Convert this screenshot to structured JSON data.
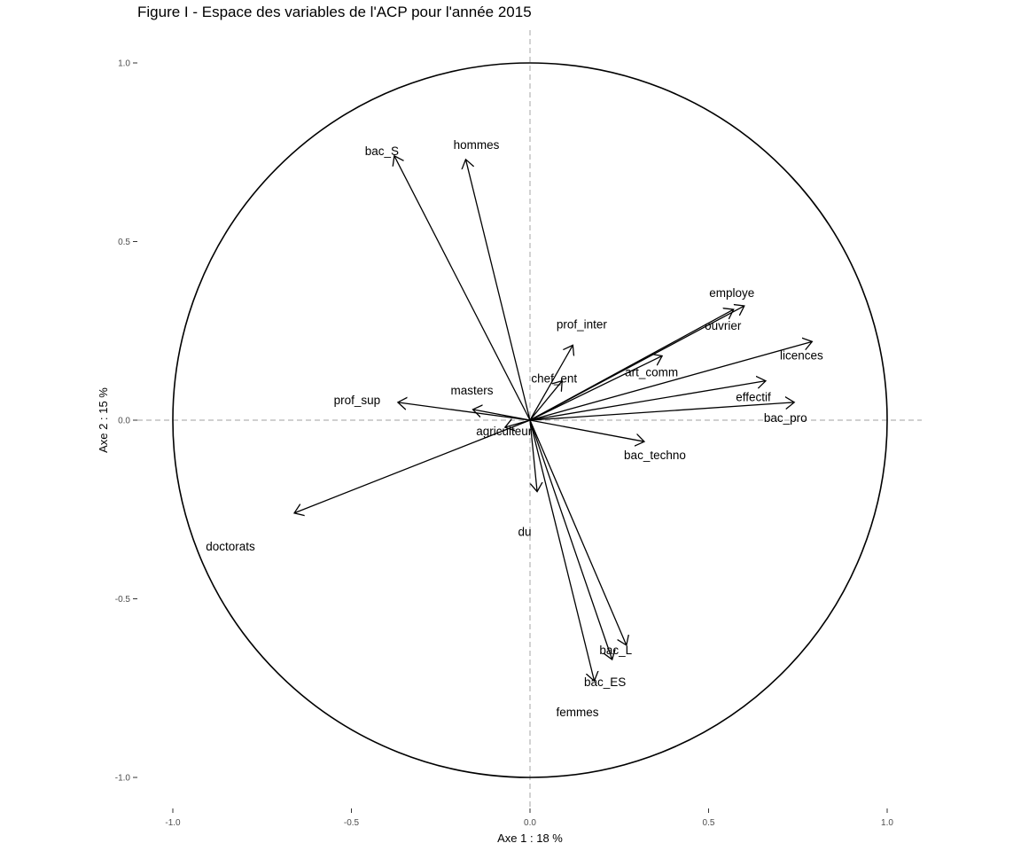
{
  "chart_data": {
    "type": "scatter",
    "title": "Figure I - Espace des variables de l'ACP pour l'année 2015",
    "xlabel": "Axe 1 : 18 %",
    "ylabel": "Axe 2 : 15 %",
    "xlim": [
      -1.0,
      1.0
    ],
    "ylim": [
      -1.0,
      1.0
    ],
    "x_ticks": [
      -1.0,
      -0.5,
      0.0,
      0.5,
      1.0
    ],
    "x_tick_labels": [
      "-1.0",
      "-0.5",
      "0.0",
      "0.5",
      "1.0"
    ],
    "y_ticks": [
      -1.0,
      -0.5,
      0.0,
      0.5,
      1.0
    ],
    "y_tick_labels": [
      "-1.0",
      "-0.5",
      "0.0",
      "0.5",
      "1.0"
    ],
    "grid": false,
    "reference_lines": "dashed lines at x=0 and y=0",
    "unit_circle": true,
    "arrows_from_origin": true,
    "variables": [
      {
        "name": "bac_S",
        "x": -0.38,
        "y": 0.74
      },
      {
        "name": "hommes",
        "x": -0.18,
        "y": 0.73
      },
      {
        "name": "employe",
        "x": 0.6,
        "y": 0.32
      },
      {
        "name": "ouvrier",
        "x": 0.57,
        "y": 0.31
      },
      {
        "name": "licences",
        "x": 0.79,
        "y": 0.22
      },
      {
        "name": "prof_inter",
        "x": 0.12,
        "y": 0.21
      },
      {
        "name": "art_comm",
        "x": 0.37,
        "y": 0.18
      },
      {
        "name": "chef_ent",
        "x": 0.09,
        "y": 0.11
      },
      {
        "name": "effectif",
        "x": 0.66,
        "y": 0.11
      },
      {
        "name": "bac_pro",
        "x": 0.74,
        "y": 0.05
      },
      {
        "name": "masters",
        "x": -0.16,
        "y": 0.03
      },
      {
        "name": "prof_sup",
        "x": -0.37,
        "y": 0.05
      },
      {
        "name": "agriculteur",
        "x": -0.07,
        "y": -0.02
      },
      {
        "name": "bac_techno",
        "x": 0.32,
        "y": -0.06
      },
      {
        "name": "du",
        "x": 0.02,
        "y": -0.2
      },
      {
        "name": "doctorats",
        "x": -0.66,
        "y": -0.26
      },
      {
        "name": "bac_L",
        "x": 0.27,
        "y": -0.63
      },
      {
        "name": "bac_ES",
        "x": 0.23,
        "y": -0.67
      },
      {
        "name": "femmes",
        "x": 0.18,
        "y": -0.73
      }
    ],
    "colors": {
      "arrow": "#000000",
      "circle": "#000000",
      "reference": "#b3b3b3"
    }
  }
}
